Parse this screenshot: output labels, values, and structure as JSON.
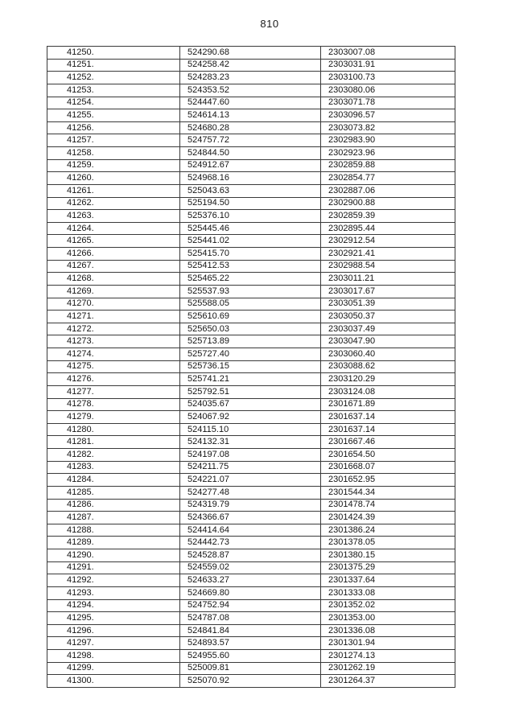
{
  "page": {
    "number": "810"
  },
  "table": {
    "rows": [
      [
        "41250.",
        "524290.68",
        "2303007.08"
      ],
      [
        "41251.",
        "524258.42",
        "2303031.91"
      ],
      [
        "41252.",
        "524283.23",
        "2303100.73"
      ],
      [
        "41253.",
        "524353.52",
        "2303080.06"
      ],
      [
        "41254.",
        "524447.60",
        "2303071.78"
      ],
      [
        "41255.",
        "524614.13",
        "2303096.57"
      ],
      [
        "41256.",
        "524680.28",
        "2303073.82"
      ],
      [
        "41257.",
        "524757.72",
        "2302983.90"
      ],
      [
        "41258.",
        "524844.50",
        "2302923.96"
      ],
      [
        "41259.",
        "524912.67",
        "2302859.88"
      ],
      [
        "41260.",
        "524968.16",
        "2302854.77"
      ],
      [
        "41261.",
        "525043.63",
        "2302887.06"
      ],
      [
        "41262.",
        "525194.50",
        "2302900.88"
      ],
      [
        "41263.",
        "525376.10",
        "2302859.39"
      ],
      [
        "41264.",
        "525445.46",
        "2302895.44"
      ],
      [
        "41265.",
        "525441.02",
        "2302912.54"
      ],
      [
        "41266.",
        "525415.70",
        "2302921.41"
      ],
      [
        "41267.",
        "525412.53",
        "2302988.54"
      ],
      [
        "41268.",
        "525465.22",
        "2303011.21"
      ],
      [
        "41269.",
        "525537.93",
        "2303017.67"
      ],
      [
        "41270.",
        "525588.05",
        "2303051.39"
      ],
      [
        "41271.",
        "525610.69",
        "2303050.37"
      ],
      [
        "41272.",
        "525650.03",
        "2303037.49"
      ],
      [
        "41273.",
        "525713.89",
        "2303047.90"
      ],
      [
        "41274.",
        "525727.40",
        "2303060.40"
      ],
      [
        "41275.",
        "525736.15",
        "2303088.62"
      ],
      [
        "41276.",
        "525741.21",
        "2303120.29"
      ],
      [
        "41277.",
        "525792.51",
        "2303124.08"
      ],
      [
        "41278.",
        "524035.67",
        "2301671.89"
      ],
      [
        "41279.",
        "524067.92",
        "2301637.14"
      ],
      [
        "41280.",
        "524115.10",
        "2301637.14"
      ],
      [
        "41281.",
        "524132.31",
        "2301667.46"
      ],
      [
        "41282.",
        "524197.08",
        "2301654.50"
      ],
      [
        "41283.",
        "524211.75",
        "2301668.07"
      ],
      [
        "41284.",
        "524221.07",
        "2301652.95"
      ],
      [
        "41285.",
        "524277.48",
        "2301544.34"
      ],
      [
        "41286.",
        "524319.79",
        "2301478.74"
      ],
      [
        "41287.",
        "524366.67",
        "2301424.39"
      ],
      [
        "41288.",
        "524414.64",
        "2301386.24"
      ],
      [
        "41289.",
        "524442.73",
        "2301378.05"
      ],
      [
        "41290.",
        "524528.87",
        "2301380.15"
      ],
      [
        "41291.",
        "524559.02",
        "2301375.29"
      ],
      [
        "41292.",
        "524633.27",
        "2301337.64"
      ],
      [
        "41293.",
        "524669.80",
        "2301333.08"
      ],
      [
        "41294.",
        "524752.94",
        "2301352.02"
      ],
      [
        "41295.",
        "524787.08",
        "2301353.00"
      ],
      [
        "41296.",
        "524841.84",
        "2301336.08"
      ],
      [
        "41297.",
        "524893.57",
        "2301301.94"
      ],
      [
        "41298.",
        "524955.60",
        "2301274.13"
      ],
      [
        "41299.",
        "525009.81",
        "2301262.19"
      ],
      [
        "41300.",
        "525070.92",
        "2301264.37"
      ]
    ]
  }
}
